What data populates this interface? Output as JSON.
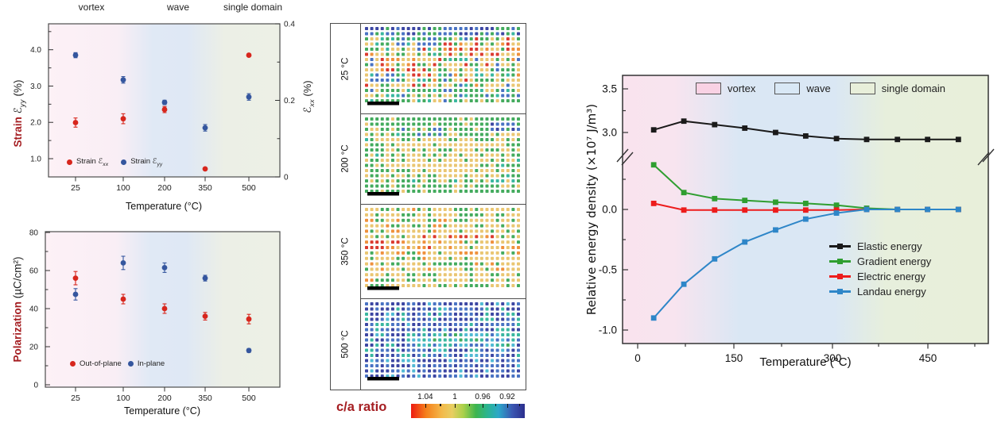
{
  "figure_type": "scientific multi-panel figure",
  "chart_data": [
    {
      "id": "strain_vs_temperature",
      "type": "scatter",
      "region_labels": [
        "vortex",
        "wave",
        "single domain"
      ],
      "x": {
        "title": "Temperature (°C)",
        "tick_labels": [
          "25",
          "100",
          "200",
          "350",
          "500"
        ]
      },
      "y_left": {
        "word": "Strain",
        "symbol": "ℰ",
        "sub": "yy",
        "unit": "(%)",
        "tick_labels": [
          "1.0",
          "2.0",
          "3.0",
          "4.0"
        ],
        "range": [
          0.5,
          4.7
        ]
      },
      "y_right": {
        "symbol": "ℰ",
        "sub": "xx",
        "unit": "(%)",
        "tick_labels": [
          "0",
          "0.2",
          "0.4"
        ],
        "range": [
          0,
          0.4
        ]
      },
      "series": [
        {
          "name": "Strain exx",
          "axis": "right",
          "color": "#d7261d",
          "values": [
            0.142,
            0.152,
            0.176,
            0.021,
            0.318
          ],
          "errors": [
            0.012,
            0.013,
            0.008,
            0.0,
            0.0
          ]
        },
        {
          "name": "Strain eyy",
          "axis": "left",
          "color": "#35569e",
          "values": [
            3.85,
            3.17,
            2.55,
            1.85,
            2.7
          ],
          "errors": [
            0.07,
            0.09,
            0.06,
            0.09,
            0.09
          ]
        }
      ],
      "legend": [
        {
          "prefix": "Strain ",
          "symbol": "ℰ",
          "sub": "xx"
        },
        {
          "prefix": "Strain ",
          "symbol": "ℰ",
          "sub": "yy"
        }
      ]
    },
    {
      "id": "polarization_vs_temperature",
      "type": "scatter",
      "x": {
        "title": "Temperature (°C)",
        "tick_labels": [
          "25",
          "100",
          "200",
          "350",
          "500"
        ]
      },
      "y": {
        "word": "Polarization",
        "unit": "(µC/cm²)",
        "tick_labels": [
          "0",
          "20",
          "40",
          "60",
          "80"
        ],
        "range": [
          0,
          80
        ]
      },
      "series": [
        {
          "name": "Out-of-plane",
          "color": "#d7261d",
          "values": [
            56,
            45,
            40,
            36,
            34.5
          ],
          "errors": [
            3.5,
            2.5,
            2.5,
            2,
            2.5
          ]
        },
        {
          "name": "In-plane",
          "color": "#35569e",
          "values": [
            47.5,
            64,
            61.5,
            56,
            18
          ],
          "errors": [
            3,
            3.5,
            2.5,
            1.5,
            1
          ]
        }
      ],
      "legend": [
        {
          "label": "Out-of-plane"
        },
        {
          "label": "In-plane"
        }
      ]
    },
    {
      "id": "relative_energy_density",
      "type": "line",
      "y": {
        "label": "Relative energy density (×10⁷ J/m³)",
        "upper_tick_labels": [
          "3.5",
          "3.0"
        ],
        "lower_tick_labels": [
          "0.0",
          "-0.5",
          "-1.0"
        ],
        "axis_break": true
      },
      "x": {
        "title": "Temperature (°C)",
        "tick_labels": [
          "0",
          "150",
          "300",
          "450"
        ],
        "range": [
          -25,
          560
        ]
      },
      "region_legend": [
        {
          "label": "vortex",
          "fill": "#f9d2e4"
        },
        {
          "label": "wave",
          "fill": "#d9e8f5"
        },
        {
          "label": "single domain",
          "fill": "#e8efda"
        }
      ],
      "x_values": [
        25,
        72,
        120,
        167,
        215,
        262,
        310,
        357,
        405,
        452,
        500
      ],
      "series": [
        {
          "name": "Elastic energy",
          "color": "#1a1a1a",
          "values": [
            3.03,
            3.13,
            3.09,
            3.05,
            3.0,
            2.96,
            2.93,
            2.92,
            2.92,
            2.92,
            2.92
          ]
        },
        {
          "name": "Gradient energy",
          "color": "#2f9e30",
          "values": [
            0.37,
            0.14,
            0.09,
            0.075,
            0.06,
            0.05,
            0.035,
            0.01,
            0,
            0,
            0
          ]
        },
        {
          "name": "Electric energy",
          "color": "#ed1c1c",
          "values": [
            0.05,
            -0.005,
            -0.005,
            -0.005,
            -0.005,
            -0.005,
            -0.005,
            0,
            0,
            0,
            0
          ]
        },
        {
          "name": "Landau energy",
          "color": "#2e86c8",
          "values": [
            -0.9,
            -0.62,
            -0.41,
            -0.27,
            -0.17,
            -0.08,
            -0.03,
            0,
            0,
            0,
            0
          ]
        }
      ]
    },
    {
      "id": "ca_ratio_maps",
      "type": "heatmap",
      "palette": {
        "red": "#d93025",
        "orange": "#ee8b33",
        "yellow": "#e9c36a",
        "green": "#3aa655",
        "teal": "#2fb39b",
        "cyan": "#49b6d2",
        "blue": "#3f6cc0",
        "navy": "#333d9e"
      },
      "colorbar": {
        "label": "c/a ratio",
        "tick_labels": [
          "1.04",
          "1",
          "0.96",
          "0.92"
        ],
        "tick_positions": [
          0.125,
          0.385,
          0.63,
          0.846
        ]
      },
      "panels": [
        {
          "label": "25 °C",
          "seed": 11,
          "scale_bar": true,
          "base": [
            [
              "yellow",
              40
            ],
            [
              "green",
              28
            ],
            [
              "teal",
              8
            ],
            [
              "blue",
              12
            ],
            [
              "red",
              6
            ],
            [
              "orange",
              6
            ]
          ],
          "zones": [
            {
              "r": [
                0,
                1
              ],
              "c": [
                0,
                29
              ],
              "mix": [
                [
                  "blue",
                  40
                ],
                [
                  "navy",
                  22
                ],
                [
                  "green",
                  24
                ],
                [
                  "teal",
                  14
                ]
              ]
            },
            {
              "r": [
                2,
                3
              ],
              "c": [
                6,
                20
              ],
              "mix": [
                [
                  "green",
                  45
                ],
                [
                  "blue",
                  30
                ],
                [
                  "teal",
                  15
                ],
                [
                  "yellow",
                  10
                ]
              ]
            },
            {
              "r": [
                3,
                5
              ],
              "c": [
                15,
                29
              ],
              "mix": [
                [
                  "yellow",
                  40
                ],
                [
                  "red",
                  30
                ],
                [
                  "orange",
                  20
                ],
                [
                  "green",
                  10
                ]
              ]
            },
            {
              "r": [
                6,
                8
              ],
              "c": [
                2,
                13
              ],
              "mix": [
                [
                  "yellow",
                  45
                ],
                [
                  "red",
                  28
                ],
                [
                  "orange",
                  17
                ],
                [
                  "green",
                  10
                ]
              ]
            },
            {
              "r": [
                9,
                10
              ],
              "c": [
                0,
                6
              ],
              "mix": [
                [
                  "blue",
                  40
                ],
                [
                  "green",
                  25
                ],
                [
                  "yellow",
                  25
                ],
                [
                  "teal",
                  10
                ]
              ]
            },
            {
              "r": [
                12,
                14
              ],
              "c": [
                0,
                29
              ],
              "mix": [
                [
                  "green",
                  40
                ],
                [
                  "teal",
                  18
                ],
                [
                  "yellow",
                  24
                ],
                [
                  "blue",
                  18
                ]
              ]
            }
          ]
        },
        {
          "label": "200 °C",
          "seed": 22,
          "scale_bar": true,
          "base": [
            [
              "green",
              55
            ],
            [
              "yellow",
              38
            ],
            [
              "teal",
              7
            ]
          ],
          "zones": [
            {
              "r": [
                0,
                1
              ],
              "c": [
                0,
                29
              ],
              "mix": [
                [
                  "green",
                  75
                ],
                [
                  "yellow",
                  25
                ]
              ]
            },
            {
              "r": [
                2,
                3
              ],
              "c": [
                7,
                15
              ],
              "mix": [
                [
                  "blue",
                  25
                ],
                [
                  "green",
                  50
                ],
                [
                  "yellow",
                  25
                ]
              ]
            },
            {
              "r": [
                1,
                2
              ],
              "c": [
                24,
                29
              ],
              "mix": [
                [
                  "blue",
                  45
                ],
                [
                  "green",
                  40
                ],
                [
                  "navy",
                  15
                ]
              ]
            },
            {
              "r": [
                4,
                11
              ],
              "c": [
                3,
                25
              ],
              "mix": [
                [
                  "yellow",
                  70
                ],
                [
                  "green",
                  30
                ]
              ]
            },
            {
              "r": [
                13,
                14
              ],
              "c": [
                0,
                29
              ],
              "mix": [
                [
                  "green",
                  78
                ],
                [
                  "yellow",
                  22
                ]
              ]
            }
          ]
        },
        {
          "label": "350 °C",
          "seed": 33,
          "scale_bar": true,
          "base": [
            [
              "yellow",
              62
            ],
            [
              "orange",
              16
            ],
            [
              "green",
              22
            ]
          ],
          "zones": [
            {
              "r": [
                0,
                1
              ],
              "c": [
                0,
                29
              ],
              "mix": [
                [
                  "green",
                  45
                ],
                [
                  "yellow",
                  50
                ],
                [
                  "orange",
                  5
                ]
              ]
            },
            {
              "r": [
                5,
                5
              ],
              "c": [
                10,
                24
              ],
              "mix": [
                [
                  "red",
                  45
                ],
                [
                  "yellow",
                  35
                ],
                [
                  "orange",
                  20
                ]
              ]
            },
            {
              "r": [
                6,
                7
              ],
              "c": [
                0,
                7
              ],
              "mix": [
                [
                  "red",
                  50
                ],
                [
                  "orange",
                  28
                ],
                [
                  "yellow",
                  22
                ]
              ]
            },
            {
              "r": [
                7,
                7
              ],
              "c": [
                5,
                13
              ],
              "mix": [
                [
                  "red",
                  30
                ],
                [
                  "orange",
                  25
                ],
                [
                  "yellow",
                  45
                ]
              ]
            },
            {
              "r": [
                9,
                10
              ],
              "c": [
                14,
                20
              ],
              "mix": [
                [
                  "green",
                  55
                ],
                [
                  "yellow",
                  45
                ]
              ]
            },
            {
              "r": [
                12,
                14
              ],
              "c": [
                2,
                29
              ],
              "mix": [
                [
                  "green",
                  48
                ],
                [
                  "yellow",
                  52
                ]
              ]
            }
          ]
        },
        {
          "label": "500 °C",
          "seed": 44,
          "scale_bar": true,
          "base": [
            [
              "navy",
              42
            ],
            [
              "blue",
              36
            ],
            [
              "teal",
              14
            ],
            [
              "cyan",
              8
            ]
          ],
          "zones": [
            {
              "r": [
                0,
                0
              ],
              "c": [
                0,
                29
              ],
              "mix": [
                [
                  "navy",
                  55
                ],
                [
                  "blue",
                  35
                ],
                [
                  "cyan",
                  10
                ]
              ]
            },
            {
              "r": [
                6,
                8
              ],
              "c": [
                8,
                28
              ],
              "mix": [
                [
                  "teal",
                  45
                ],
                [
                  "cyan",
                  25
                ],
                [
                  "green",
                  12
                ],
                [
                  "blue",
                  18
                ]
              ]
            },
            {
              "r": [
                11,
                14
              ],
              "c": [
                0,
                29
              ],
              "mix": [
                [
                  "navy",
                  45
                ],
                [
                  "blue",
                  40
                ],
                [
                  "cyan",
                  15
                ]
              ]
            }
          ]
        }
      ]
    }
  ],
  "colors": {
    "accent_dark_red": "#a51e22",
    "marker_red": "#d7261d",
    "marker_blue": "#35569e",
    "frame": "#4d4d4d",
    "bg_vortex": "#fbeef5",
    "bg_wave": "#dfe8f5",
    "bg_single_domain": "#ecefe6"
  }
}
